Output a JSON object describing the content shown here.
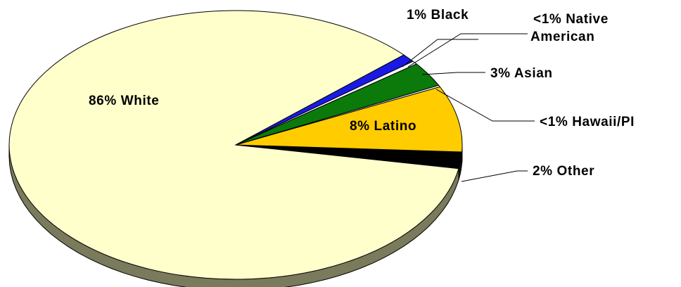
{
  "chart_data": {
    "type": "pie",
    "style": "3d",
    "title": "",
    "slices": [
      {
        "label": "86% White",
        "value": 86,
        "color": "#FFFFCC"
      },
      {
        "label": "1% Black",
        "value": 1,
        "color": "#1A1AE6"
      },
      {
        "label": "<1% Native American",
        "value": 0.4,
        "color": "#FFFFFF"
      },
      {
        "label": "3% Asian",
        "value": 3,
        "color": "#0B7A0B"
      },
      {
        "label": "<1% Hawaii/PI",
        "value": 0.2,
        "color": "#FFFFFF"
      },
      {
        "label": "8% Latino",
        "value": 8,
        "color": "#FFCC00"
      },
      {
        "label": "2% Other",
        "value": 2,
        "color": "#000000"
      }
    ],
    "side_color": "#7A7A5C",
    "label_lines": {
      "black": [
        "1% Black"
      ],
      "native": [
        "<1% Native",
        "American"
      ],
      "asian": [
        "3% Asian"
      ],
      "hawaii": [
        "<1% Hawaii/PI"
      ],
      "latino": [
        "8% Latino"
      ],
      "other": [
        "2% Other"
      ],
      "white": [
        "86% White"
      ]
    }
  }
}
